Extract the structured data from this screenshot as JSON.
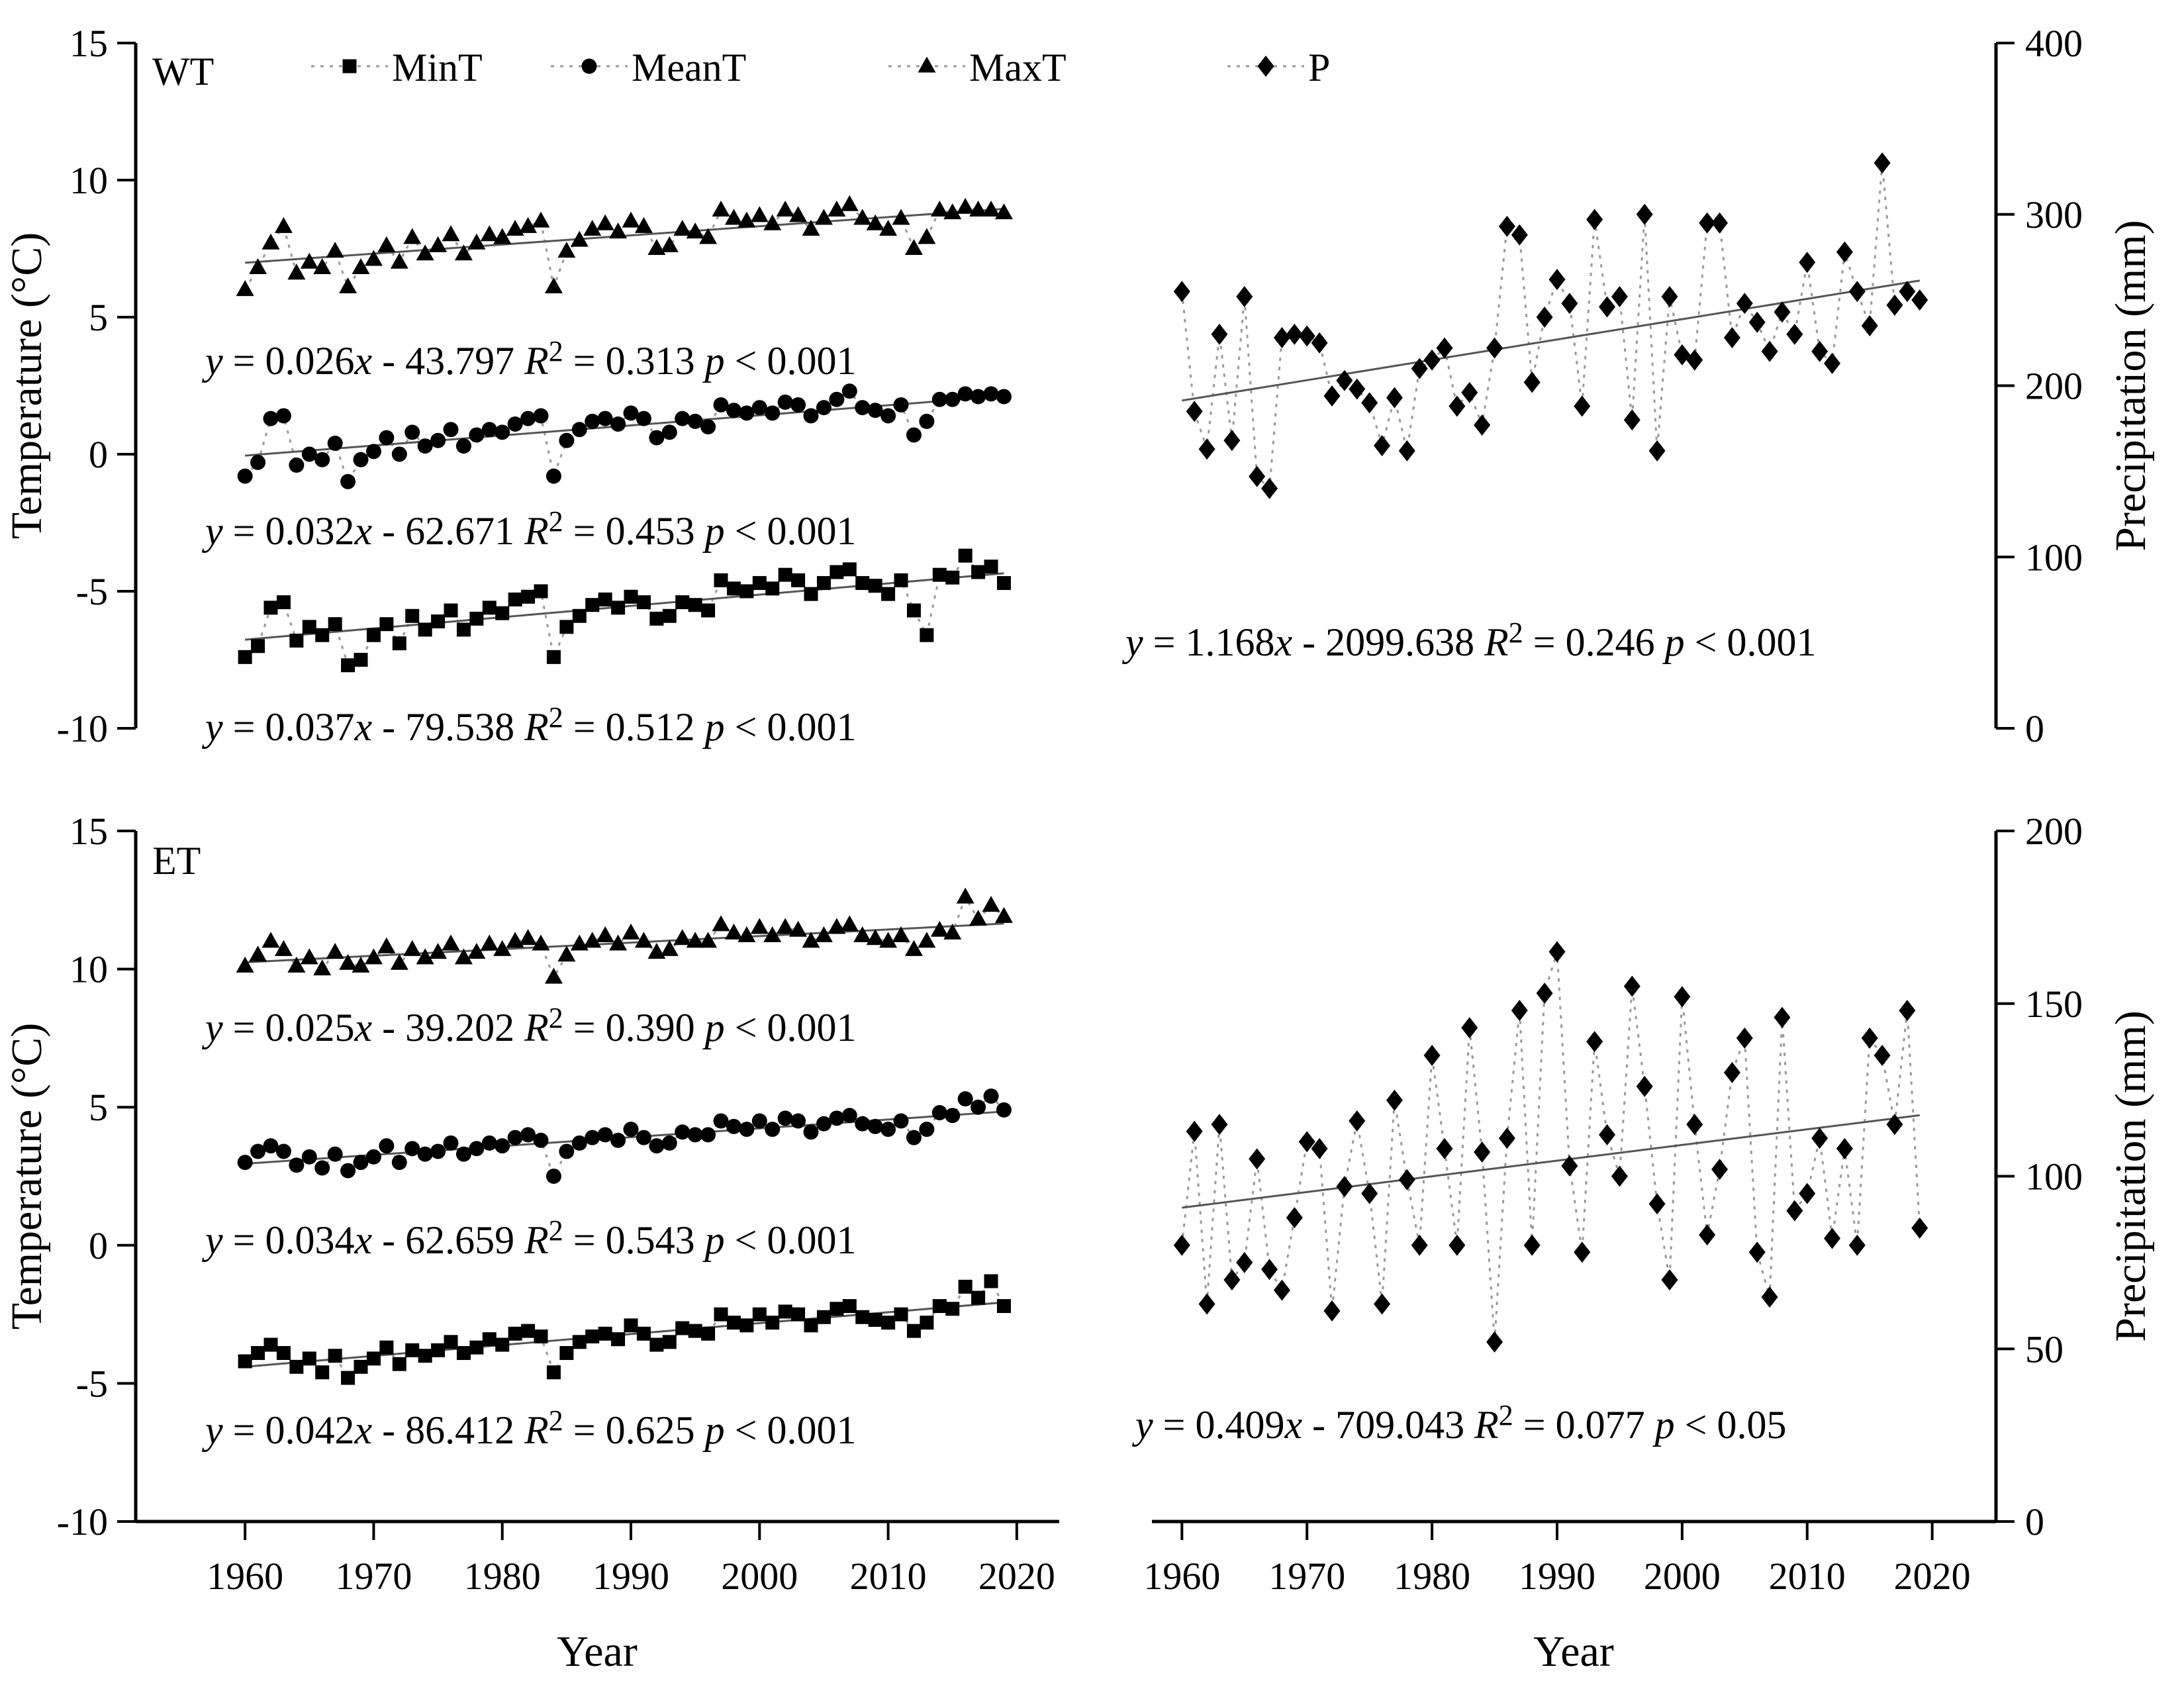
{
  "figure": {
    "panel_labels": [
      "WT",
      "ET"
    ],
    "colors": {
      "marker": "#000000",
      "connector": "#999999",
      "trend": "#555555",
      "axis": "#000000",
      "text": "#000000"
    },
    "legend": {
      "items": [
        {
          "label": "MinT",
          "marker": "square"
        },
        {
          "label": "MeanT",
          "marker": "circle"
        },
        {
          "label": "MaxT",
          "marker": "triangle"
        },
        {
          "label": "P",
          "marker": "diamond"
        }
      ]
    }
  },
  "chart_data": [
    {
      "id": "wt_temperature",
      "type": "scatter",
      "panel_label": "WT",
      "ylabel": "Temperature (°C)",
      "ylim": [
        -10,
        15
      ],
      "y_ticks": [
        15,
        10,
        5,
        0,
        -5,
        -10
      ],
      "x_ticks": [],
      "xlabel": "",
      "years": [
        1960,
        1961,
        1962,
        1963,
        1964,
        1965,
        1966,
        1967,
        1968,
        1969,
        1970,
        1971,
        1972,
        1973,
        1974,
        1975,
        1976,
        1977,
        1978,
        1979,
        1980,
        1981,
        1982,
        1983,
        1984,
        1985,
        1986,
        1987,
        1988,
        1989,
        1990,
        1991,
        1992,
        1993,
        1994,
        1995,
        1996,
        1997,
        1998,
        1999,
        2000,
        2001,
        2002,
        2003,
        2004,
        2005,
        2006,
        2007,
        2008,
        2009,
        2010,
        2011,
        2012,
        2013,
        2014,
        2015,
        2016,
        2017,
        2018,
        2019
      ],
      "series": [
        {
          "name": "MaxT",
          "marker": "triangle",
          "equation": "y = 0.026x - 43.797",
          "r_squared": "R² = 0.313",
          "significance": "p < 0.001",
          "values": [
            6.0,
            6.8,
            7.7,
            8.3,
            6.6,
            7.0,
            6.8,
            7.4,
            6.1,
            6.8,
            7.1,
            7.6,
            7.0,
            7.9,
            7.3,
            7.6,
            8.0,
            7.3,
            7.7,
            8.0,
            7.9,
            8.2,
            8.3,
            8.5,
            6.1,
            7.4,
            7.8,
            8.2,
            8.4,
            8.1,
            8.5,
            8.3,
            7.5,
            7.6,
            8.2,
            8.1,
            7.9,
            8.9,
            8.6,
            8.5,
            8.7,
            8.4,
            8.9,
            8.7,
            8.2,
            8.6,
            8.9,
            9.1,
            8.6,
            8.4,
            8.2,
            8.6,
            7.5,
            7.9,
            8.9,
            8.8,
            9.0,
            8.9,
            8.9,
            8.8
          ]
        },
        {
          "name": "MeanT",
          "marker": "circle",
          "equation": "y = 0.032x - 62.671",
          "r_squared": "R² = 0.453",
          "significance": "p < 0.001",
          "values": [
            -0.8,
            -0.3,
            1.3,
            1.4,
            -0.4,
            0.0,
            -0.2,
            0.4,
            -1.0,
            -0.2,
            0.1,
            0.6,
            0.0,
            0.8,
            0.3,
            0.5,
            0.9,
            0.3,
            0.7,
            0.9,
            0.8,
            1.1,
            1.3,
            1.4,
            -0.8,
            0.5,
            0.9,
            1.2,
            1.3,
            1.1,
            1.5,
            1.3,
            0.6,
            0.8,
            1.3,
            1.2,
            1.0,
            1.8,
            1.6,
            1.5,
            1.7,
            1.5,
            1.9,
            1.8,
            1.4,
            1.7,
            2.0,
            2.3,
            1.7,
            1.6,
            1.4,
            1.8,
            0.7,
            1.2,
            2.0,
            2.0,
            2.2,
            2.1,
            2.2,
            2.1
          ]
        },
        {
          "name": "MinT",
          "marker": "square",
          "equation": "y = 0.037x - 79.538",
          "r_squared": "R² = 0.512",
          "significance": "p < 0.001",
          "values": [
            -7.4,
            -7.0,
            -5.6,
            -5.4,
            -6.8,
            -6.3,
            -6.6,
            -6.2,
            -7.7,
            -7.5,
            -6.6,
            -6.2,
            -6.9,
            -5.9,
            -6.4,
            -6.1,
            -5.7,
            -6.4,
            -6.0,
            -5.6,
            -5.8,
            -5.3,
            -5.2,
            -5.0,
            -7.4,
            -6.3,
            -5.9,
            -5.5,
            -5.3,
            -5.6,
            -5.2,
            -5.4,
            -6.0,
            -5.9,
            -5.4,
            -5.5,
            -5.7,
            -4.6,
            -4.9,
            -5.0,
            -4.7,
            -4.9,
            -4.4,
            -4.6,
            -5.1,
            -4.7,
            -4.3,
            -4.2,
            -4.7,
            -4.8,
            -5.1,
            -4.6,
            -5.7,
            -6.6,
            -4.4,
            -4.5,
            -3.7,
            -4.3,
            -4.1,
            -4.7
          ]
        }
      ]
    },
    {
      "id": "wt_precipitation",
      "type": "scatter",
      "panel_label": "",
      "ylabel": "Precipitation (mm)",
      "ylim": [
        0,
        400
      ],
      "y_ticks": [
        400,
        300,
        200,
        100,
        0
      ],
      "x_ticks": [],
      "xlabel": "",
      "years": [
        1960,
        1961,
        1962,
        1963,
        1964,
        1965,
        1966,
        1967,
        1968,
        1969,
        1970,
        1971,
        1972,
        1973,
        1974,
        1975,
        1976,
        1977,
        1978,
        1979,
        1980,
        1981,
        1982,
        1983,
        1984,
        1985,
        1986,
        1987,
        1988,
        1989,
        1990,
        1991,
        1992,
        1993,
        1994,
        1995,
        1996,
        1997,
        1998,
        1999,
        2000,
        2001,
        2002,
        2003,
        2004,
        2005,
        2006,
        2007,
        2008,
        2009,
        2010,
        2011,
        2012,
        2013,
        2014,
        2015,
        2016,
        2017,
        2018,
        2019
      ],
      "series": [
        {
          "name": "P",
          "marker": "diamond",
          "equation": "y = 1.168x - 2099.638",
          "r_squared": "R² = 0.246",
          "significance": "p < 0.001",
          "values": [
            255,
            185,
            163,
            230,
            168,
            252,
            147,
            140,
            228,
            230,
            229,
            225,
            194,
            203,
            198,
            190,
            165,
            193,
            162,
            210,
            215,
            222,
            188,
            196,
            177,
            222,
            293,
            288,
            202,
            240,
            262,
            248,
            188,
            297,
            246,
            252,
            180,
            300,
            162,
            252,
            218,
            215,
            295,
            295,
            228,
            248,
            237,
            220,
            243,
            230,
            272,
            220,
            213,
            278,
            255,
            235,
            330,
            247,
            255,
            250
          ]
        }
      ]
    },
    {
      "id": "et_temperature",
      "type": "scatter",
      "panel_label": "ET",
      "ylabel": "Temperature (°C)",
      "ylim": [
        -10,
        15
      ],
      "y_ticks": [
        15,
        10,
        5,
        0,
        -5,
        -10
      ],
      "x_ticks": [
        1960,
        1970,
        1980,
        1990,
        2000,
        2010,
        2020
      ],
      "xlabel": "Year",
      "years": [
        1960,
        1961,
        1962,
        1963,
        1964,
        1965,
        1966,
        1967,
        1968,
        1969,
        1970,
        1971,
        1972,
        1973,
        1974,
        1975,
        1976,
        1977,
        1978,
        1979,
        1980,
        1981,
        1982,
        1983,
        1984,
        1985,
        1986,
        1987,
        1988,
        1989,
        1990,
        1991,
        1992,
        1993,
        1994,
        1995,
        1996,
        1997,
        1998,
        1999,
        2000,
        2001,
        2002,
        2003,
        2004,
        2005,
        2006,
        2007,
        2008,
        2009,
        2010,
        2011,
        2012,
        2013,
        2014,
        2015,
        2016,
        2017,
        2018,
        2019
      ],
      "series": [
        {
          "name": "MaxT",
          "marker": "triangle",
          "equation": "y = 0.025x - 39.202",
          "r_squared": "R² = 0.390",
          "significance": "p < 0.001",
          "values": [
            10.1,
            10.5,
            11.0,
            10.7,
            10.1,
            10.4,
            10.0,
            10.6,
            10.2,
            10.1,
            10.4,
            10.8,
            10.2,
            10.7,
            10.4,
            10.6,
            10.9,
            10.4,
            10.6,
            10.9,
            10.7,
            11.0,
            11.1,
            10.9,
            9.7,
            10.5,
            10.9,
            11.0,
            11.2,
            10.9,
            11.3,
            11.0,
            10.6,
            10.7,
            11.1,
            11.0,
            11.0,
            11.6,
            11.3,
            11.2,
            11.5,
            11.2,
            11.5,
            11.4,
            11.0,
            11.2,
            11.5,
            11.6,
            11.2,
            11.1,
            11.0,
            11.2,
            10.7,
            11.0,
            11.4,
            11.3,
            12.6,
            11.8,
            12.3,
            11.9
          ]
        },
        {
          "name": "MeanT",
          "marker": "circle",
          "equation": "y = 0.034x - 62.659",
          "r_squared": "R² = 0.543",
          "significance": "p < 0.001",
          "values": [
            3.0,
            3.4,
            3.6,
            3.4,
            2.9,
            3.2,
            2.8,
            3.3,
            2.7,
            3.0,
            3.2,
            3.6,
            3.0,
            3.5,
            3.3,
            3.4,
            3.7,
            3.3,
            3.5,
            3.7,
            3.6,
            3.9,
            4.0,
            3.8,
            2.5,
            3.4,
            3.7,
            3.9,
            4.0,
            3.8,
            4.2,
            3.9,
            3.6,
            3.7,
            4.1,
            4.0,
            4.0,
            4.5,
            4.3,
            4.2,
            4.5,
            4.2,
            4.6,
            4.5,
            4.1,
            4.4,
            4.6,
            4.7,
            4.4,
            4.3,
            4.2,
            4.5,
            3.9,
            4.2,
            4.8,
            4.7,
            5.3,
            5.0,
            5.4,
            4.9
          ]
        },
        {
          "name": "MinT",
          "marker": "square",
          "equation": "y = 0.042x - 86.412",
          "r_squared": "R² = 0.625",
          "significance": "p < 0.001",
          "values": [
            -4.2,
            -3.9,
            -3.6,
            -3.9,
            -4.4,
            -4.1,
            -4.6,
            -4.0,
            -4.8,
            -4.4,
            -4.1,
            -3.7,
            -4.3,
            -3.8,
            -4.0,
            -3.8,
            -3.5,
            -3.9,
            -3.7,
            -3.4,
            -3.6,
            -3.2,
            -3.1,
            -3.3,
            -4.6,
            -3.9,
            -3.5,
            -3.3,
            -3.2,
            -3.4,
            -2.9,
            -3.2,
            -3.6,
            -3.5,
            -3.0,
            -3.1,
            -3.2,
            -2.5,
            -2.8,
            -2.9,
            -2.5,
            -2.8,
            -2.4,
            -2.5,
            -2.9,
            -2.6,
            -2.3,
            -2.2,
            -2.6,
            -2.7,
            -2.8,
            -2.5,
            -3.1,
            -2.8,
            -2.2,
            -2.3,
            -1.5,
            -1.9,
            -1.3,
            -2.2
          ]
        }
      ]
    },
    {
      "id": "et_precipitation",
      "type": "scatter",
      "panel_label": "",
      "ylabel": "Precipitation (mm)",
      "ylim": [
        0,
        200
      ],
      "y_ticks": [
        200,
        150,
        100,
        50,
        0
      ],
      "x_ticks": [
        1960,
        1970,
        1980,
        1990,
        2000,
        2010,
        2020
      ],
      "xlabel": "Year",
      "years": [
        1960,
        1961,
        1962,
        1963,
        1964,
        1965,
        1966,
        1967,
        1968,
        1969,
        1970,
        1971,
        1972,
        1973,
        1974,
        1975,
        1976,
        1977,
        1978,
        1979,
        1980,
        1981,
        1982,
        1983,
        1984,
        1985,
        1986,
        1987,
        1988,
        1989,
        1990,
        1991,
        1992,
        1993,
        1994,
        1995,
        1996,
        1997,
        1998,
        1999,
        2000,
        2001,
        2002,
        2003,
        2004,
        2005,
        2006,
        2007,
        2008,
        2009,
        2010,
        2011,
        2012,
        2013,
        2014,
        2015,
        2016,
        2017,
        2018,
        2019
      ],
      "series": [
        {
          "name": "P",
          "marker": "diamond",
          "equation": "y = 0.409x - 709.043",
          "r_squared": "R² = 0.077",
          "significance": "p < 0.05",
          "values": [
            80,
            113,
            63,
            115,
            70,
            75,
            105,
            73,
            67,
            88,
            110,
            108,
            61,
            97,
            116,
            95,
            63,
            122,
            99,
            80,
            135,
            108,
            80,
            143,
            107,
            52,
            111,
            148,
            80,
            153,
            165,
            103,
            78,
            139,
            112,
            100,
            155,
            126,
            92,
            70,
            152,
            115,
            83,
            102,
            130,
            140,
            78,
            65,
            146,
            90,
            95,
            111,
            82,
            108,
            80,
            140,
            135,
            115,
            148,
            85
          ]
        }
      ]
    }
  ]
}
